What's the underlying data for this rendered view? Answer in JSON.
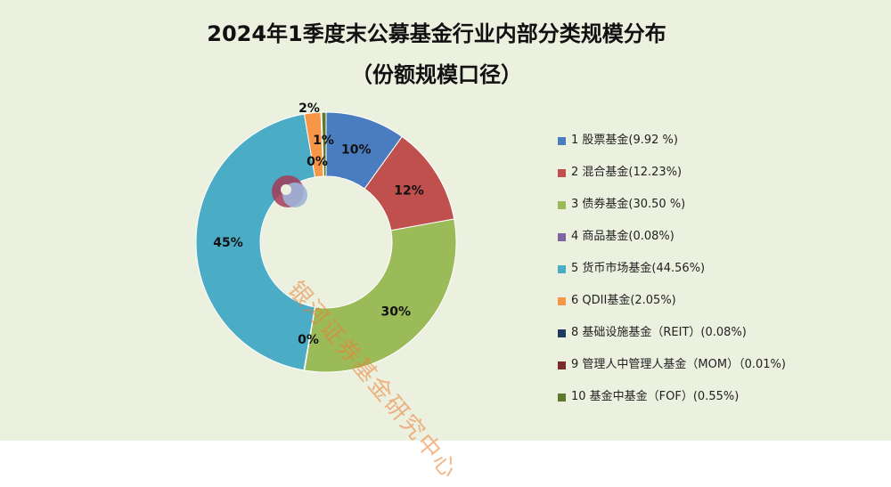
{
  "chart_data": {
    "type": "pie",
    "title": "2024年1季度末公募基金行业内部分类规模分布",
    "subtitle": "（份额规模口径）",
    "legend_position": "right",
    "slices": [
      {
        "legend": "1 股票基金(9.92 %)",
        "label": "10%",
        "value": 9.92,
        "color": "#4a7dbf"
      },
      {
        "legend": "2 混合基金(12.23%)",
        "label": "12%",
        "value": 12.23,
        "color": "#c0504d"
      },
      {
        "legend": "3 债券基金(30.50 %)",
        "label": "30%",
        "value": 30.5,
        "color": "#9bbb59"
      },
      {
        "legend": "4 商品基金(0.08%)",
        "label": "0%",
        "value": 0.08,
        "color": "#8064a2"
      },
      {
        "legend": "5 货币市场基金(44.56%)",
        "label": "45%",
        "value": 44.56,
        "color": "#4bacc6"
      },
      {
        "legend": "6 QDII基金(2.05%)",
        "label": "2%",
        "value": 2.05,
        "color": "#f79646"
      },
      {
        "legend": "8 基础设施基金（REIT）(0.08%)",
        "label": "0%",
        "value": 0.08,
        "color": "#1f3a63"
      },
      {
        "legend": "9 管理人中管理人基金（MOM）（0.01%)",
        "label": "",
        "value": 0.01,
        "color": "#7b2c2a"
      },
      {
        "legend": "10 基金中基金（FOF）(0.55%)",
        "label": "1%",
        "value": 0.55,
        "color": "#5d7a2c"
      }
    ]
  },
  "watermark": "银河证券基金研究中心"
}
